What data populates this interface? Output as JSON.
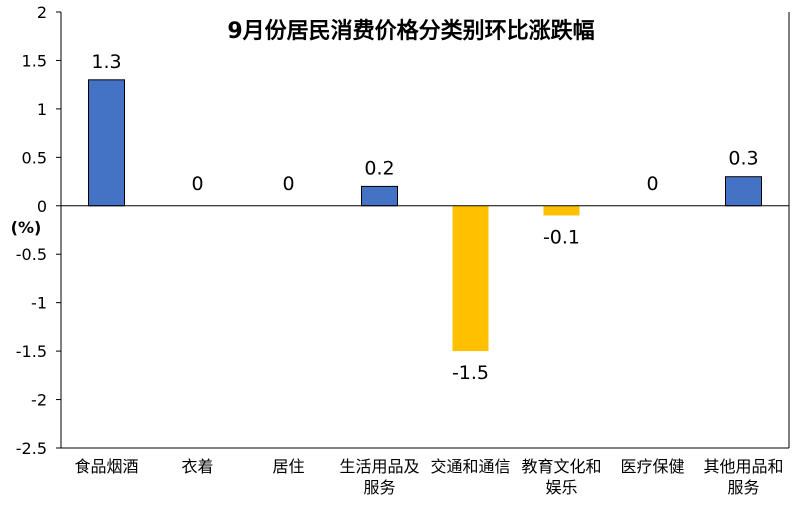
{
  "chart_data": {
    "type": "bar",
    "title": "9月份居民消费价格分类别环比涨跌幅",
    "ylabel": "(%)",
    "xlabel": "",
    "ylim": [
      -2.5,
      2
    ],
    "yticks": [
      "2",
      "1.5",
      "1",
      "0.5",
      "0",
      "-0.5",
      "-1",
      "-1.5",
      "-2",
      "-2.5"
    ],
    "yticks_values": [
      2,
      1.5,
      1,
      0.5,
      0,
      -0.5,
      -1,
      -1.5,
      -2,
      -2.5
    ],
    "categories": [
      "食品烟酒",
      "衣着",
      "居住",
      "生活用品及服务",
      "交通和通信",
      "教育文化和娱乐",
      "医疗保健",
      "其他用品和服务"
    ],
    "category_lines": [
      [
        "食品烟酒"
      ],
      [
        "衣着"
      ],
      [
        "居住"
      ],
      [
        "生活用品及",
        "服务"
      ],
      [
        "交通和通信"
      ],
      [
        "教育文化和",
        "娱乐"
      ],
      [
        "医疗保健"
      ],
      [
        "其他用品和",
        "服务"
      ]
    ],
    "values": [
      1.3,
      0,
      0,
      0.2,
      -1.5,
      -0.1,
      0,
      0.3
    ],
    "value_labels": [
      "1.3",
      "0",
      "0",
      "0.2",
      "-1.5",
      "-0.1",
      "0",
      "0.3"
    ],
    "grid": false,
    "legend": "none",
    "colors": {
      "positive": "#4472C4",
      "negative": "#FFC000",
      "axis": "#000000"
    }
  }
}
